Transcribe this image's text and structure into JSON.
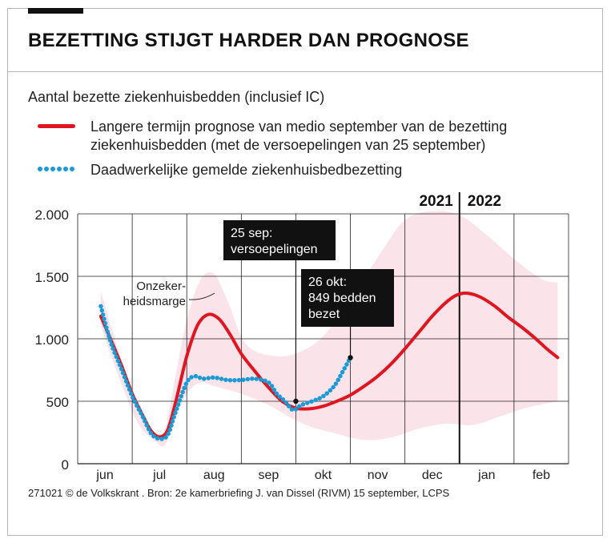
{
  "header": {
    "title": "BEZETTING STIJGT HARDER DAN PROGNOSE",
    "subtitle": "Aantal bezette ziekenhuisbedden (inclusief IC)"
  },
  "legend": [
    {
      "label": "Langere termijn prognose van medio september van de bezetting ziekenhuisbedden (met de versoepelingen van 25 september)",
      "color": "#e0151f",
      "style": "line"
    },
    {
      "label": "Daadwerkelijke gemelde ziekenhuisbedbezetting",
      "color": "#1a9ad6",
      "style": "dots"
    }
  ],
  "footer": {
    "credit": "271021 © de Volkskrant . Bron: 2e kamerbriefing J. van Dissel (RIVM) 15 september, LCPS"
  },
  "chart_data": {
    "type": "line",
    "title": "BEZETTING STIJGT HARDER DAN PROGNOSE",
    "ylabel": "Aantal bezette ziekenhuisbedden (inclusief IC)",
    "xlabel": "",
    "ylim": [
      0,
      2000
    ],
    "xlim": [
      0,
      18
    ],
    "x_unit": "half-months from 1 June 2021",
    "yticks": [
      0,
      500,
      1000,
      1500,
      2000
    ],
    "ytick_labels": [
      "0",
      "500",
      "1.000",
      "1.500",
      "2.000"
    ],
    "xtick_positions": [
      1,
      3,
      5,
      7,
      9,
      11,
      13,
      15,
      17
    ],
    "xtick_labels": [
      "jun",
      "jul",
      "aug",
      "sep",
      "okt",
      "nov",
      "dec",
      "jan",
      "feb"
    ],
    "year_divider": {
      "x": 14,
      "left_label": "2021",
      "right_label": "2022"
    },
    "uncertainty_band": {
      "label": "Onzekerheidsmarge",
      "upper": [
        [
          0.85,
          1380
        ],
        [
          1.5,
          900
        ],
        [
          2.2,
          440
        ],
        [
          2.9,
          240
        ],
        [
          3.2,
          280
        ],
        [
          3.5,
          600
        ],
        [
          4.0,
          1150
        ],
        [
          4.5,
          1470
        ],
        [
          5.0,
          1520
        ],
        [
          5.5,
          1300
        ],
        [
          6.2,
          950
        ],
        [
          7.3,
          860
        ],
        [
          8.2,
          900
        ],
        [
          9.0,
          1020
        ],
        [
          10.0,
          1310
        ],
        [
          11.0,
          1650
        ],
        [
          12.0,
          1950
        ],
        [
          13.0,
          2020
        ],
        [
          14.0,
          1990
        ],
        [
          15.0,
          1830
        ],
        [
          16.0,
          1640
        ],
        [
          17.0,
          1480
        ],
        [
          17.6,
          1450
        ]
      ],
      "lower": [
        [
          0.85,
          1100
        ],
        [
          1.5,
          700
        ],
        [
          2.2,
          330
        ],
        [
          2.9,
          170
        ],
        [
          3.2,
          150
        ],
        [
          3.5,
          320
        ],
        [
          4.0,
          560
        ],
        [
          4.5,
          650
        ],
        [
          5.0,
          620
        ],
        [
          6.0,
          560
        ],
        [
          7.0,
          470
        ],
        [
          7.8,
          370
        ],
        [
          8.5,
          300
        ],
        [
          9.5,
          240
        ],
        [
          10.5,
          190
        ],
        [
          11.5,
          210
        ],
        [
          12.5,
          280
        ],
        [
          13.5,
          320
        ],
        [
          14.5,
          310
        ],
        [
          15.5,
          380
        ],
        [
          16.5,
          450
        ],
        [
          17.6,
          500
        ]
      ]
    },
    "series": [
      {
        "name": "Langere termijn prognose van medio september van de bezetting ziekenhuisbedden (met de versoepelingen van 25 september)",
        "color": "#e0151f",
        "points": [
          [
            0.85,
            1180
          ],
          [
            1.2,
            1000
          ],
          [
            1.6,
            790
          ],
          [
            2.0,
            560
          ],
          [
            2.4,
            380
          ],
          [
            2.7,
            260
          ],
          [
            3.0,
            215
          ],
          [
            3.3,
            270
          ],
          [
            3.6,
            500
          ],
          [
            4.0,
            860
          ],
          [
            4.4,
            1110
          ],
          [
            4.8,
            1195
          ],
          [
            5.2,
            1155
          ],
          [
            5.6,
            1030
          ],
          [
            6.0,
            880
          ],
          [
            6.5,
            740
          ],
          [
            7.0,
            610
          ],
          [
            7.5,
            500
          ],
          [
            8.0,
            445
          ],
          [
            8.5,
            440
          ],
          [
            9.0,
            460
          ],
          [
            9.5,
            500
          ],
          [
            10.0,
            550
          ],
          [
            10.5,
            620
          ],
          [
            11.0,
            700
          ],
          [
            11.5,
            800
          ],
          [
            12.0,
            920
          ],
          [
            12.5,
            1050
          ],
          [
            13.0,
            1180
          ],
          [
            13.5,
            1290
          ],
          [
            13.9,
            1350
          ],
          [
            14.3,
            1365
          ],
          [
            14.8,
            1330
          ],
          [
            15.3,
            1260
          ],
          [
            15.8,
            1170
          ],
          [
            16.3,
            1090
          ],
          [
            16.8,
            1000
          ],
          [
            17.2,
            920
          ],
          [
            17.6,
            850
          ]
        ]
      },
      {
        "name": "Daadwerkelijke gemelde ziekenhuisbedbezetting",
        "color": "#1a9ad6",
        "points": [
          [
            0.85,
            1260
          ],
          [
            1.2,
            980
          ],
          [
            1.6,
            760
          ],
          [
            2.0,
            540
          ],
          [
            2.4,
            370
          ],
          [
            2.7,
            240
          ],
          [
            3.0,
            200
          ],
          [
            3.3,
            230
          ],
          [
            3.6,
            420
          ],
          [
            4.0,
            650
          ],
          [
            4.3,
            700
          ],
          [
            4.6,
            680
          ],
          [
            5.0,
            690
          ],
          [
            5.5,
            670
          ],
          [
            6.0,
            670
          ],
          [
            6.5,
            680
          ],
          [
            7.0,
            650
          ],
          [
            7.3,
            560
          ],
          [
            7.6,
            500
          ],
          [
            7.9,
            430
          ],
          [
            8.2,
            470
          ],
          [
            8.6,
            500
          ],
          [
            9.0,
            540
          ],
          [
            9.4,
            620
          ],
          [
            9.7,
            730
          ],
          [
            10.0,
            849
          ]
        ]
      }
    ],
    "annotations": [
      {
        "id": "sep25",
        "x": 8.0,
        "y": 500,
        "text_lines": [
          "25 sep:",
          "versoepelingen"
        ]
      },
      {
        "id": "okt26",
        "x": 10.0,
        "y": 849,
        "text_lines": [
          "26 okt:",
          "849 bedden",
          "bezet"
        ]
      }
    ]
  }
}
